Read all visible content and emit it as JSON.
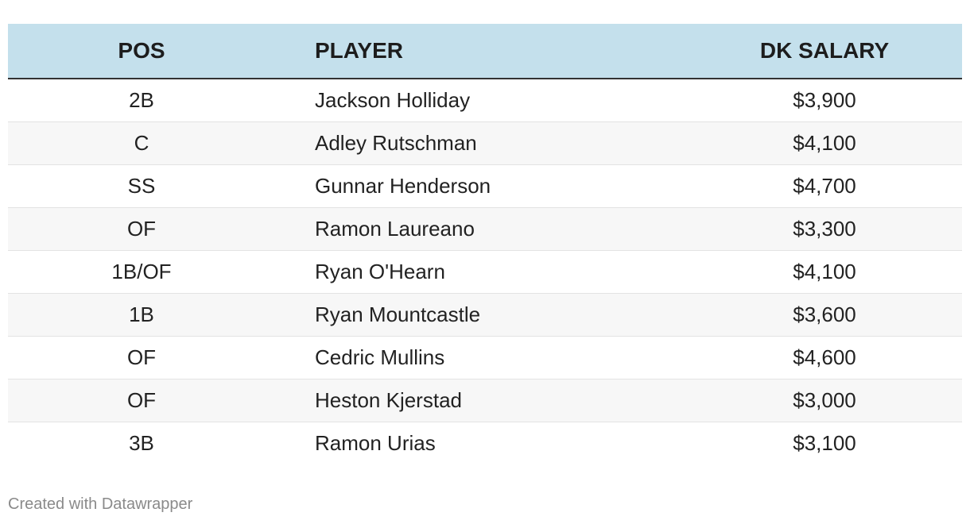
{
  "table": {
    "columns": [
      "POS",
      "PLAYER",
      "DK SALARY"
    ],
    "rows": [
      [
        "2B",
        "Jackson Holliday",
        "$3,900"
      ],
      [
        "C",
        "Adley Rutschman",
        "$4,100"
      ],
      [
        "SS",
        "Gunnar Henderson",
        "$4,700"
      ],
      [
        "OF",
        "Ramon Laureano",
        "$3,300"
      ],
      [
        "1B/OF",
        "Ryan O'Hearn",
        "$4,100"
      ],
      [
        "1B",
        "Ryan Mountcastle",
        "$3,600"
      ],
      [
        "OF",
        "Cedric Mullins",
        "$4,600"
      ],
      [
        "OF",
        "Heston Kjerstad",
        "$3,000"
      ],
      [
        "3B",
        "Ramon Urias",
        "$3,100"
      ]
    ]
  },
  "footer": "Created with Datawrapper"
}
